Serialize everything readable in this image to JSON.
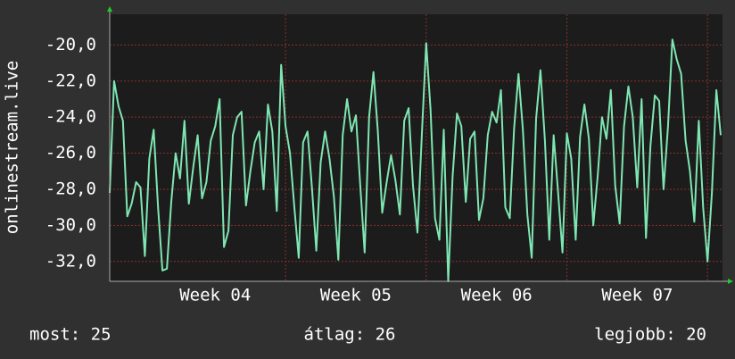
{
  "chart_data": {
    "type": "line",
    "ylabel": "onlinestream.live",
    "categories": [
      null,
      null,
      null,
      null,
      null,
      null,
      null,
      null,
      null,
      null,
      null,
      null,
      null,
      null,
      null,
      null,
      null,
      null,
      null,
      null,
      null,
      null,
      null,
      null,
      "Week 04",
      null,
      null,
      null,
      null,
      null,
      null,
      null,
      null,
      null,
      null,
      null,
      null,
      null,
      null,
      null,
      null,
      null,
      null,
      null,
      null,
      null,
      null,
      null,
      null,
      null,
      null,
      null,
      null,
      null,
      null,
      null,
      "Week 05",
      null,
      null,
      null,
      null,
      null,
      null,
      null,
      null,
      null,
      null,
      null,
      null,
      null,
      null,
      null,
      null,
      null,
      null,
      null,
      null,
      null,
      null,
      null,
      null,
      null,
      null,
      null,
      null,
      null,
      null,
      null,
      "Week 06",
      null,
      null,
      null,
      null,
      null,
      null,
      null,
      null,
      null,
      null,
      null,
      null,
      null,
      null,
      null,
      null,
      null,
      null,
      null,
      null,
      null,
      null,
      null,
      null,
      null,
      null,
      null,
      null,
      null,
      null,
      null,
      "Week 07",
      null,
      null,
      null,
      null,
      null,
      null,
      null,
      null,
      null,
      null,
      null,
      null,
      null,
      null,
      null,
      null,
      null,
      null,
      null
    ],
    "series": [
      {
        "name": null,
        "color": "#7ee6b2",
        "values": [
          -28.2,
          -22.0,
          -23.4,
          -24.2,
          -29.5,
          -28.8,
          -27.6,
          -27.9,
          -31.7,
          -26.3,
          -24.7,
          -29.0,
          -32.5,
          -32.4,
          -28.7,
          -26.0,
          -27.4,
          -24.2,
          -28.8,
          -26.8,
          -25.0,
          -28.5,
          -27.6,
          -25.3,
          -24.5,
          -23.0,
          -31.2,
          -30.3,
          -25.0,
          -24.0,
          -23.7,
          -28.9,
          -27.0,
          -25.4,
          -24.8,
          -28.0,
          -23.3,
          -24.8,
          -29.2,
          -21.1,
          -24.5,
          -26.0,
          -29.0,
          -31.8,
          -25.4,
          -24.8,
          -27.9,
          -31.4,
          -26.5,
          -24.8,
          -26.3,
          -28.4,
          -31.9,
          -25.0,
          -23.0,
          -24.8,
          -23.9,
          -27.8,
          -31.5,
          -24.0,
          -21.5,
          -24.8,
          -29.3,
          -27.6,
          -26.1,
          -27.5,
          -29.4,
          -24.2,
          -23.5,
          -27.8,
          -30.4,
          -25.0,
          -19.9,
          -23.6,
          -29.6,
          -30.8,
          -24.7,
          -33.1,
          -27.3,
          -23.8,
          -24.5,
          -28.7,
          -25.2,
          -24.8,
          -29.7,
          -28.5,
          -25.0,
          -23.7,
          -24.3,
          -22.5,
          -29.0,
          -29.6,
          -24.6,
          -21.6,
          -24.7,
          -29.4,
          -31.8,
          -24.1,
          -21.4,
          -25.3,
          -30.8,
          -25.0,
          -28.2,
          -31.5,
          -24.9,
          -26.3,
          -30.8,
          -25.1,
          -23.3,
          -25.2,
          -30.0,
          -27.3,
          -24.0,
          -25.2,
          -22.5,
          -27.8,
          -29.9,
          -24.5,
          -22.3,
          -24.0,
          -27.9,
          -23.0,
          -30.7,
          -25.6,
          -22.8,
          -23.1,
          -28.0,
          -24.5,
          -19.7,
          -20.8,
          -21.6,
          -25.3,
          -27.0,
          -29.8,
          -24.2,
          -29.0,
          -32.0,
          -28.2,
          -22.5,
          -25.0
        ]
      }
    ],
    "ylim": [
      -33.1,
      -18.3
    ],
    "yticks": [
      {
        "value": -32,
        "label": "-32,0"
      },
      {
        "value": -30,
        "label": "-30,0"
      },
      {
        "value": -28,
        "label": "-28,0"
      },
      {
        "value": -26,
        "label": "-26,0"
      },
      {
        "value": -24,
        "label": "-24,0"
      },
      {
        "value": -22,
        "label": "-22,0"
      },
      {
        "value": -20,
        "label": "-20,0"
      }
    ],
    "grid": true,
    "footer": [
      "most: 25",
      "átlag: 26",
      "legjobb: 20"
    ]
  }
}
